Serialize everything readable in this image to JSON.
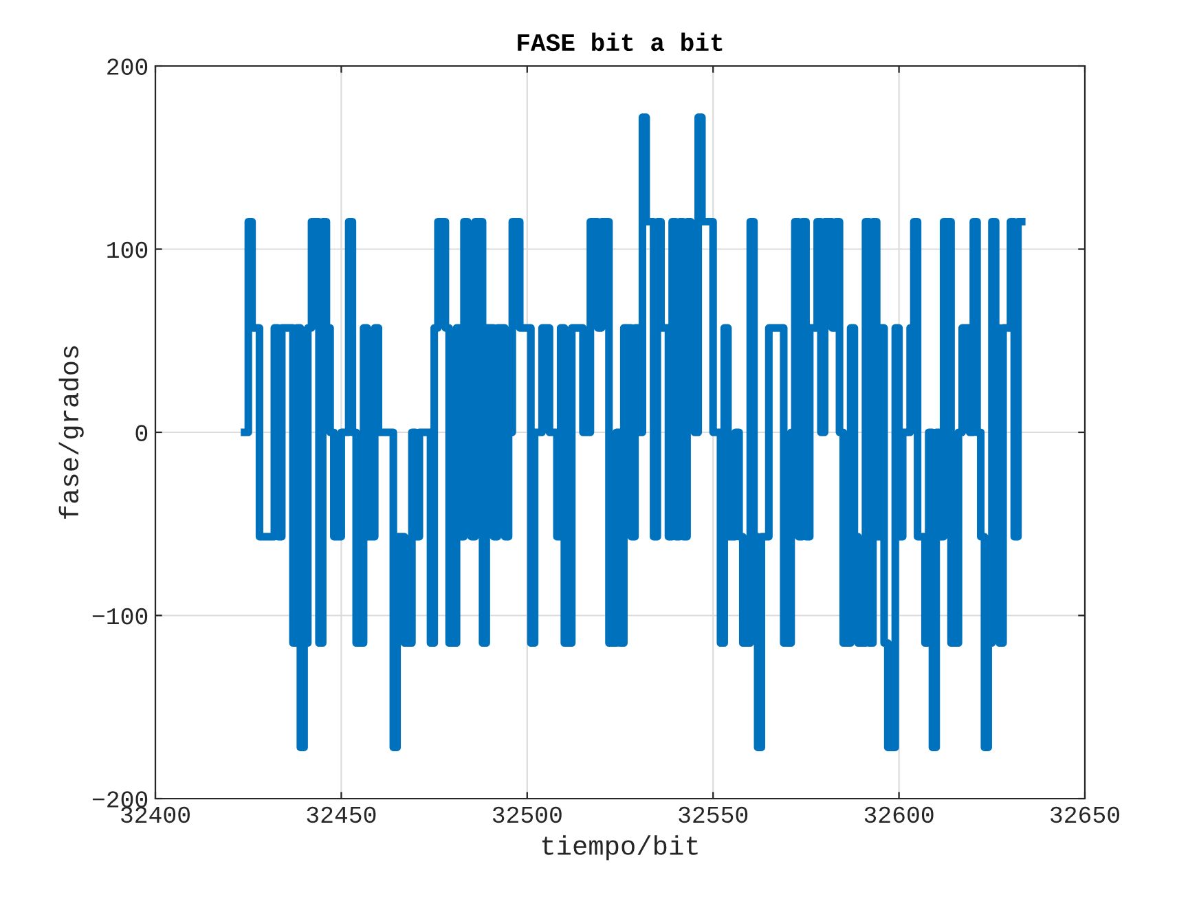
{
  "chart_data": {
    "type": "step",
    "title": "FASE bit a bit",
    "xlabel": "tiempo/bit",
    "ylabel": "fase/grados",
    "xlim": [
      32400,
      32650
    ],
    "xticks": [
      32400,
      32450,
      32500,
      32550,
      32600,
      32650
    ],
    "ylim": [
      -200,
      200
    ],
    "yticks": [
      -200,
      -100,
      0,
      100,
      200
    ],
    "grid": true,
    "legend": false,
    "marker": "none",
    "line_style": "solid",
    "series": [
      {
        "color": "#0072bd",
        "x": [
          32424,
          32425,
          32426,
          32428,
          32432,
          32433,
          32434,
          32437,
          32438,
          32439,
          32440,
          32441,
          32442,
          32444,
          32445,
          32446,
          32447,
          32448,
          32450,
          32452,
          32453,
          32454,
          32456,
          32457,
          32459,
          32460,
          32464,
          32465,
          32467,
          32469,
          32470,
          32471,
          32474,
          32475,
          32476,
          32478,
          32479,
          32481,
          32482,
          32483,
          32484,
          32485,
          32486,
          32488,
          32489,
          32491,
          32492,
          32494,
          32495,
          32496,
          32498,
          32501,
          32502,
          32504,
          32506,
          32508,
          32509,
          32510,
          32512,
          32515,
          32517,
          32519,
          32520,
          32522,
          32524,
          32525,
          32526,
          32528,
          32529,
          32530,
          32531,
          32532,
          32534,
          32535,
          32536,
          32538,
          32539,
          32540,
          32541,
          32542,
          32543,
          32544,
          32545,
          32546,
          32547,
          32550,
          32552,
          32553,
          32554,
          32556,
          32557,
          32558,
          32560,
          32561,
          32562,
          32563,
          32565,
          32569,
          32571,
          32572,
          32573,
          32574,
          32575,
          32576,
          32578,
          32579,
          32580,
          32582,
          32583,
          32584,
          32585,
          32587,
          32588,
          32589,
          32591,
          32592,
          32593,
          32594,
          32595,
          32596,
          32597,
          32599,
          32600,
          32601,
          32603,
          32604,
          32605,
          32607,
          32608,
          32609,
          32610,
          32611,
          32612,
          32614,
          32616,
          32617,
          32619,
          32620,
          32621,
          32622,
          32623,
          32624,
          32625,
          32626,
          32627,
          32628,
          32630,
          32631,
          32632,
          32633
        ],
        "values": [
          0,
          115,
          57,
          -57,
          57,
          -57,
          57,
          -115,
          57,
          -172,
          -115,
          57,
          115,
          -115,
          115,
          57,
          0,
          -57,
          0,
          115,
          0,
          -115,
          57,
          -57,
          57,
          0,
          -172,
          -57,
          -115,
          0,
          -57,
          0,
          -115,
          57,
          115,
          57,
          -115,
          57,
          -57,
          115,
          57,
          -57,
          115,
          -115,
          57,
          -57,
          57,
          -57,
          0,
          115,
          57,
          -115,
          0,
          57,
          0,
          -57,
          57,
          -115,
          57,
          0,
          115,
          57,
          115,
          -115,
          0,
          -115,
          57,
          -57,
          57,
          0,
          172,
          115,
          -57,
          115,
          57,
          -57,
          115,
          -57,
          115,
          -57,
          115,
          57,
          0,
          172,
          115,
          0,
          -115,
          57,
          -57,
          0,
          -57,
          -115,
          115,
          -57,
          -172,
          -57,
          57,
          -115,
          0,
          115,
          -57,
          115,
          -57,
          57,
          115,
          0,
          115,
          57,
          115,
          0,
          -115,
          57,
          -57,
          -115,
          115,
          -115,
          115,
          -57,
          57,
          -115,
          -172,
          57,
          -57,
          0,
          57,
          115,
          -57,
          -115,
          0,
          -172,
          0,
          -57,
          115,
          -115,
          0,
          57,
          0,
          115,
          0,
          -57,
          -172,
          -115,
          115,
          57,
          -115,
          57,
          115,
          -57,
          115,
          115
        ]
      }
    ]
  }
}
